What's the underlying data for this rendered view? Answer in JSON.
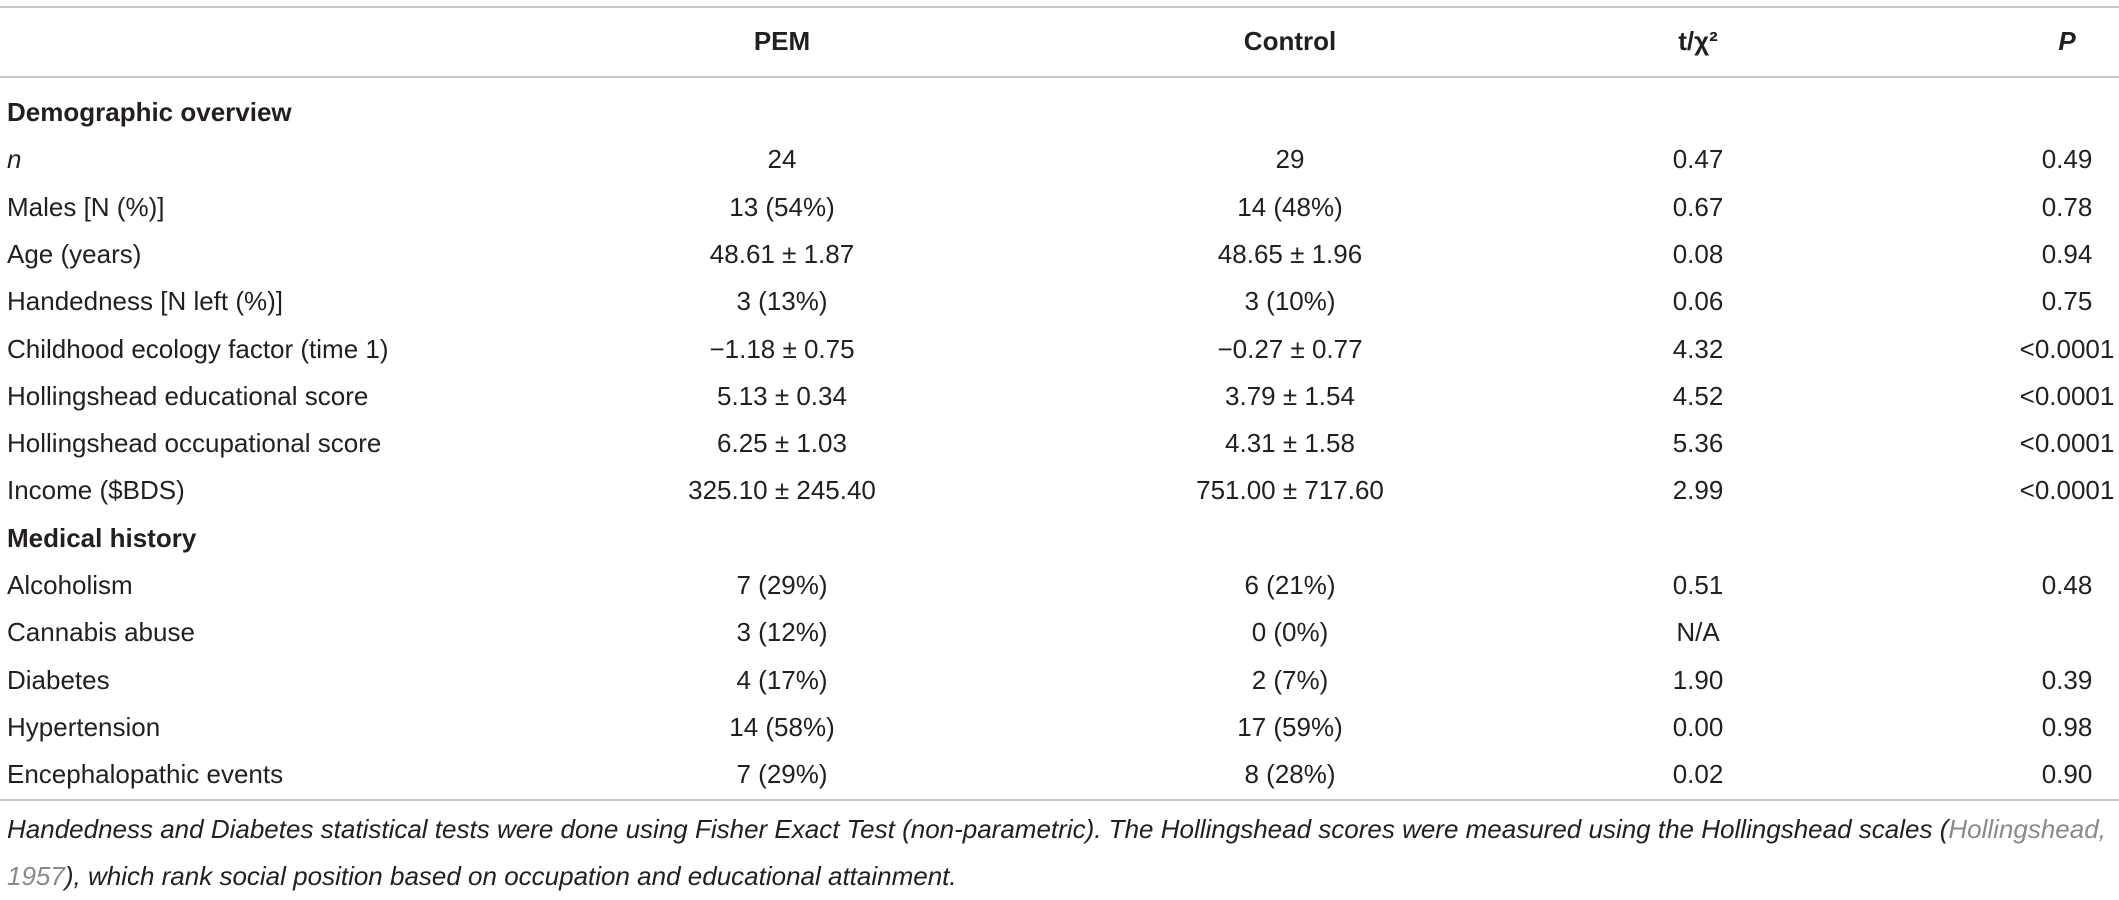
{
  "table": {
    "header": [
      "PEM",
      "Control",
      "t/χ²",
      "P"
    ],
    "sections": [
      {
        "title": "Demographic overview",
        "rows": [
          [
            "n",
            "24",
            "29",
            "0.47",
            "0.49"
          ],
          [
            "Males [N (%)]",
            "13 (54%)",
            "14 (48%)",
            "0.67",
            "0.78"
          ],
          [
            "Age (years)",
            "48.61 ± 1.87",
            "48.65 ± 1.96",
            "0.08",
            "0.94"
          ],
          [
            "Handedness [N left (%)]",
            "3 (13%)",
            "3 (10%)",
            "0.06",
            "0.75"
          ],
          [
            "Childhood ecology factor (time 1)",
            "−1.18 ± 0.75",
            "−0.27 ± 0.77",
            "4.32",
            "<0.0001"
          ],
          [
            "Hollingshead educational score",
            "5.13 ± 0.34",
            "3.79 ± 1.54",
            "4.52",
            "<0.0001"
          ],
          [
            "Hollingshead occupational score",
            "6.25 ± 1.03",
            "4.31 ± 1.58",
            "5.36",
            "<0.0001"
          ],
          [
            "Income ($BDS)",
            "325.10 ± 245.40",
            "751.00 ± 717.60",
            "2.99",
            "<0.0001"
          ]
        ]
      },
      {
        "title": "Medical history",
        "rows": [
          [
            "Alcoholism",
            "7 (29%)",
            "6 (21%)",
            "0.51",
            "0.48"
          ],
          [
            "Cannabis abuse",
            "3 (12%)",
            "0 (0%)",
            "N/A",
            null
          ],
          [
            "Diabetes",
            "4 (17%)",
            "2 (7%)",
            "1.90",
            "0.39"
          ],
          [
            "Hypertension",
            "14 (58%)",
            "17 (59%)",
            "0.00",
            "0.98"
          ],
          [
            "Encephalopathic events",
            "7 (29%)",
            "8 (28%)",
            "0.02",
            "0.90"
          ]
        ]
      }
    ],
    "footnote": {
      "before": "Handedness and Diabetes statistical tests were done using Fisher Exact Test (non-parametric). The Hollingshead scores were measured using the Hollingshead scales (",
      "citation": "Hollingshead, 1957",
      "after": "), which rank social position based on occupation and educational attainment."
    }
  }
}
